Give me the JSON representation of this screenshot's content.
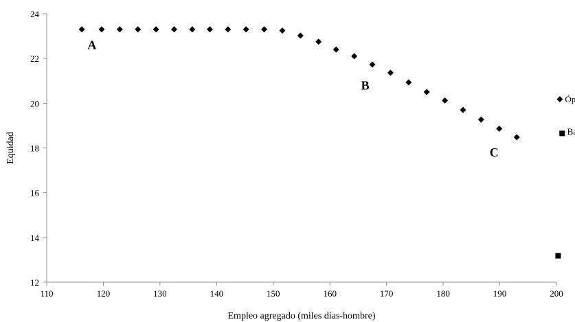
{
  "chart_data": {
    "type": "scatter",
    "xlabel": "Empleo agregado (miles días-hombre)",
    "ylabel": "Equidad",
    "xlim": [
      110,
      200
    ],
    "ylim": [
      12,
      24
    ],
    "xticks": [
      110,
      120,
      130,
      140,
      150,
      160,
      170,
      180,
      190,
      200
    ],
    "yticks": [
      12,
      14,
      16,
      18,
      20,
      22,
      24
    ],
    "grid": false,
    "legend": "none",
    "series": [
      {
        "marker": "diamond",
        "color": "#000000",
        "points": [
          [
            116.2,
            23.3
          ],
          [
            119.7,
            23.3
          ],
          [
            122.9,
            23.3
          ],
          [
            126.1,
            23.3
          ],
          [
            129.3,
            23.3
          ],
          [
            132.5,
            23.3
          ],
          [
            135.7,
            23.3
          ],
          [
            138.8,
            23.3
          ],
          [
            142.0,
            23.3
          ],
          [
            145.2,
            23.3
          ],
          [
            148.4,
            23.3
          ],
          [
            151.6,
            23.25
          ],
          [
            154.8,
            23.02
          ],
          [
            158.0,
            22.75
          ],
          [
            161.1,
            22.4
          ],
          [
            164.3,
            22.1
          ],
          [
            167.5,
            21.73
          ],
          [
            170.7,
            21.36
          ],
          [
            173.9,
            20.93
          ],
          [
            177.1,
            20.5
          ],
          [
            180.3,
            20.12
          ],
          [
            183.5,
            19.7
          ],
          [
            186.7,
            19.27
          ],
          [
            189.9,
            18.86
          ],
          [
            193.0,
            18.48
          ]
        ]
      },
      {
        "marker": "diamond",
        "color": "#000000",
        "points": [
          [
            200.6,
            20.18
          ]
        ]
      },
      {
        "marker": "square",
        "color": "#000000",
        "points": [
          [
            201.0,
            18.65
          ],
          [
            200.3,
            13.18
          ]
        ]
      }
    ],
    "annotations": [
      {
        "text": "A",
        "x": 117.2,
        "y": 22.6
      },
      {
        "text": "B",
        "x": 165.5,
        "y": 20.8
      },
      {
        "text": "C",
        "x": 188.2,
        "y": 17.8
      },
      {
        "text": "Óptimo",
        "x": 201.5,
        "y": 20.17
      },
      {
        "text": "Base",
        "x": 201.9,
        "y": 18.72
      }
    ]
  }
}
